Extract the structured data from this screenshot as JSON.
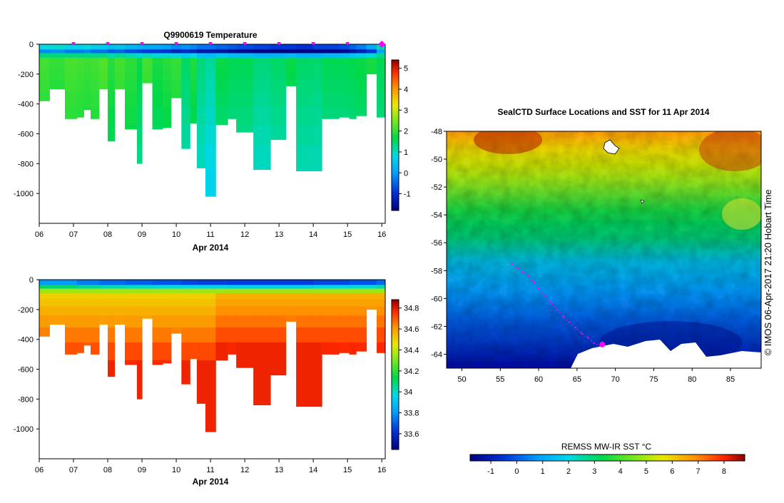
{
  "chart_data": [
    {
      "type": "heatmap",
      "title": "Q9900619  Temperature",
      "xlabel": "Apr 2014",
      "ylabel": "",
      "x_ticks": [
        "06",
        "07",
        "08",
        "09",
        "10",
        "11",
        "12",
        "13",
        "14",
        "15",
        "16"
      ],
      "y_ticks": [
        0,
        -200,
        -400,
        -600,
        -800,
        -1000
      ],
      "xlim": [
        6,
        16.1
      ],
      "ylim": [
        -1200,
        0
      ],
      "colorbar": {
        "ticks": [
          -1,
          0,
          1,
          2,
          3,
          4,
          5
        ],
        "range": [
          -1.8,
          5.4
        ]
      },
      "profile_markers_day": [
        7.0,
        8.0,
        9.0,
        10.0,
        11.0,
        12.0,
        13.0,
        14.0,
        15.0,
        16.0
      ],
      "profiles": {
        "start_day": [
          6.0,
          6.3,
          6.75,
          7.1,
          7.3,
          7.5,
          7.75,
          8.0,
          8.2,
          8.5,
          8.85,
          9.0,
          9.3,
          9.6,
          9.85,
          10.15,
          10.4,
          10.6,
          10.85,
          11.15,
          11.5,
          11.75,
          12.25,
          12.75,
          13.2,
          13.5,
          14.0,
          14.25,
          14.75,
          15.05,
          15.25,
          15.55,
          15.85,
          16.05
        ],
        "bottom_depth_m": [
          -380,
          -300,
          -500,
          -490,
          -440,
          -500,
          -300,
          -650,
          -300,
          -570,
          -800,
          -260,
          -570,
          -560,
          -360,
          -700,
          -530,
          -830,
          -1020,
          -540,
          -500,
          -590,
          -840,
          -640,
          -280,
          -850,
          -850,
          -500,
          -490,
          -500,
          -480,
          -200,
          -490,
          -490
        ],
        "deep_temperature_c": [
          2.0,
          1.9,
          2.05,
          2.0,
          1.95,
          2.0,
          2.1,
          1.8,
          2.0,
          1.85,
          1.6,
          2.0,
          1.7,
          1.8,
          1.9,
          1.4,
          1.75,
          1.3,
          1.1,
          1.6,
          1.5,
          1.5,
          1.3,
          1.4,
          1.6,
          1.4,
          1.35,
          1.5,
          1.5,
          1.55,
          1.6,
          1.7,
          1.5,
          1.5
        ],
        "surface_temperature_c": [
          0.2,
          0.3,
          0.1,
          0.1,
          0.2,
          0.0,
          0.0,
          -0.2,
          -0.1,
          -0.3,
          -0.4,
          -0.5,
          -0.5,
          -0.6,
          -0.8,
          -0.7,
          -0.8,
          -1.0,
          -1.0,
          -1.1,
          -1.2,
          -1.3,
          -1.4,
          -1.5,
          -1.5,
          -1.6,
          -1.4,
          -1.4,
          -1.3,
          -1.1,
          -0.9,
          -0.5,
          0.5,
          0.4
        ]
      }
    },
    {
      "type": "heatmap",
      "title": "",
      "xlabel": "Apr 2014",
      "ylabel": "",
      "x_ticks": [
        "06",
        "07",
        "08",
        "09",
        "10",
        "11",
        "12",
        "13",
        "14",
        "15",
        "16"
      ],
      "y_ticks": [
        0,
        -200,
        -400,
        -600,
        -800,
        -1000
      ],
      "xlim": [
        6,
        16.1
      ],
      "ylim": [
        -1200,
        0
      ],
      "colorbar": {
        "ticks": [
          33.6,
          33.8,
          34,
          34.2,
          34.4,
          34.6,
          34.8
        ],
        "range": [
          33.45,
          34.88
        ]
      },
      "surface_salinity_psu": [
        33.8,
        33.75,
        33.72,
        33.7,
        33.68,
        33.66,
        33.65,
        33.64,
        33.64,
        33.66,
        33.68,
        33.72
      ]
    },
    {
      "type": "heatmap",
      "title": "SealCTD Surface Locations and SST for 11 Apr 2014",
      "xlabel": "",
      "ylabel": "",
      "x_ticks": [
        50,
        55,
        60,
        65,
        70,
        75,
        80,
        85
      ],
      "y_ticks": [
        -48,
        -50,
        -52,
        -54,
        -56,
        -58,
        -60,
        -62,
        -64
      ],
      "xlim": [
        48,
        89
      ],
      "ylim": [
        -65,
        -48
      ],
      "colorbar": {
        "label": "REMSS MW-IR SST °C",
        "ticks": [
          -1,
          0,
          1,
          2,
          3,
          4,
          5,
          6,
          7,
          8
        ],
        "range": [
          -1.8,
          8.8
        ]
      },
      "track_points_lonlat": [
        [
          56.5,
          -57.5
        ],
        [
          57.2,
          -57.8
        ],
        [
          57.9,
          -58.1
        ],
        [
          58.6,
          -58.4
        ],
        [
          59.3,
          -58.8
        ],
        [
          60.0,
          -59.3
        ],
        [
          60.8,
          -59.8
        ],
        [
          61.6,
          -60.3
        ],
        [
          62.4,
          -60.8
        ],
        [
          63.2,
          -61.3
        ],
        [
          64.0,
          -61.7
        ],
        [
          64.8,
          -62.1
        ],
        [
          65.6,
          -62.5
        ],
        [
          66.4,
          -62.8
        ],
        [
          67.2,
          -63.2
        ],
        [
          68.0,
          -63.4
        ]
      ],
      "highlight_point_lonlat": [
        68.3,
        -63.3
      ],
      "credit": "© IMOS 06-Apr-2017 21:20 Hobart Time"
    }
  ]
}
